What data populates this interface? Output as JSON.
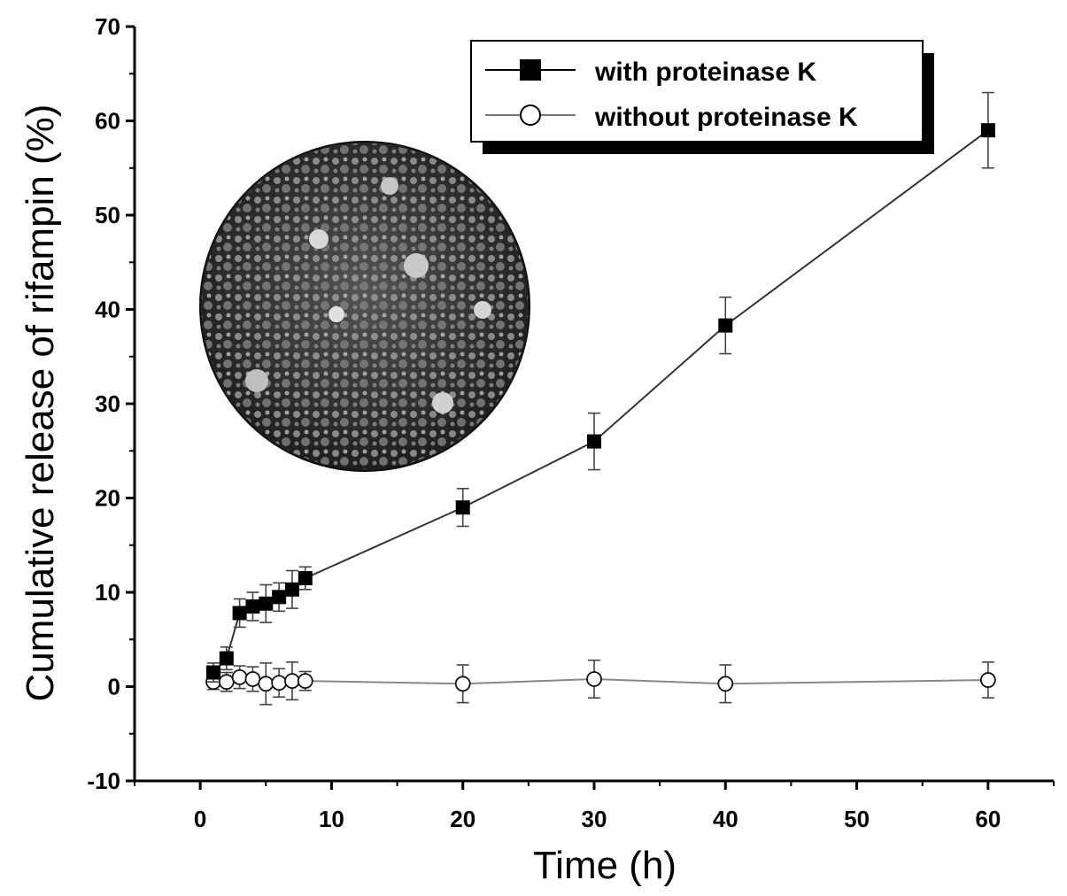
{
  "chart_data": {
    "type": "line",
    "title": "",
    "xlabel": "Time (h)",
    "ylabel": "Cumulative release of  rifampin (%)",
    "xlim": [
      -5,
      65
    ],
    "ylim": [
      -10,
      70
    ],
    "x_ticks": [
      0,
      10,
      20,
      30,
      40,
      50,
      60
    ],
    "y_ticks": [
      -10,
      0,
      10,
      20,
      30,
      40,
      50,
      60,
      70
    ],
    "grid": false,
    "legend_position": "top-right",
    "inset": "circular SEM micrograph of microspheres",
    "series": [
      {
        "name": "with proteinase K",
        "marker": "filled-square",
        "color": "#000000",
        "x": [
          1,
          2,
          3,
          4,
          5,
          6,
          7,
          8,
          20,
          30,
          40,
          60
        ],
        "y": [
          1.5,
          3.0,
          7.8,
          8.5,
          8.8,
          9.5,
          10.3,
          11.5,
          19.0,
          26.0,
          38.3,
          59.0
        ],
        "error": [
          1.0,
          1.2,
          1.5,
          1.5,
          2.0,
          1.5,
          2.0,
          1.2,
          2.0,
          3.0,
          3.0,
          4.0
        ]
      },
      {
        "name": "without proteinase K",
        "marker": "open-circle",
        "color": "#777777",
        "x": [
          1,
          2,
          3,
          4,
          5,
          6,
          7,
          8,
          20,
          30,
          40,
          60
        ],
        "y": [
          0.5,
          0.5,
          1.0,
          0.8,
          0.3,
          0.4,
          0.6,
          0.6,
          0.3,
          0.8,
          0.3,
          0.7
        ],
        "error": [
          0.8,
          1.0,
          1.2,
          1.3,
          2.2,
          1.5,
          2.0,
          1.0,
          2.0,
          2.0,
          2.0,
          1.9
        ]
      }
    ]
  }
}
